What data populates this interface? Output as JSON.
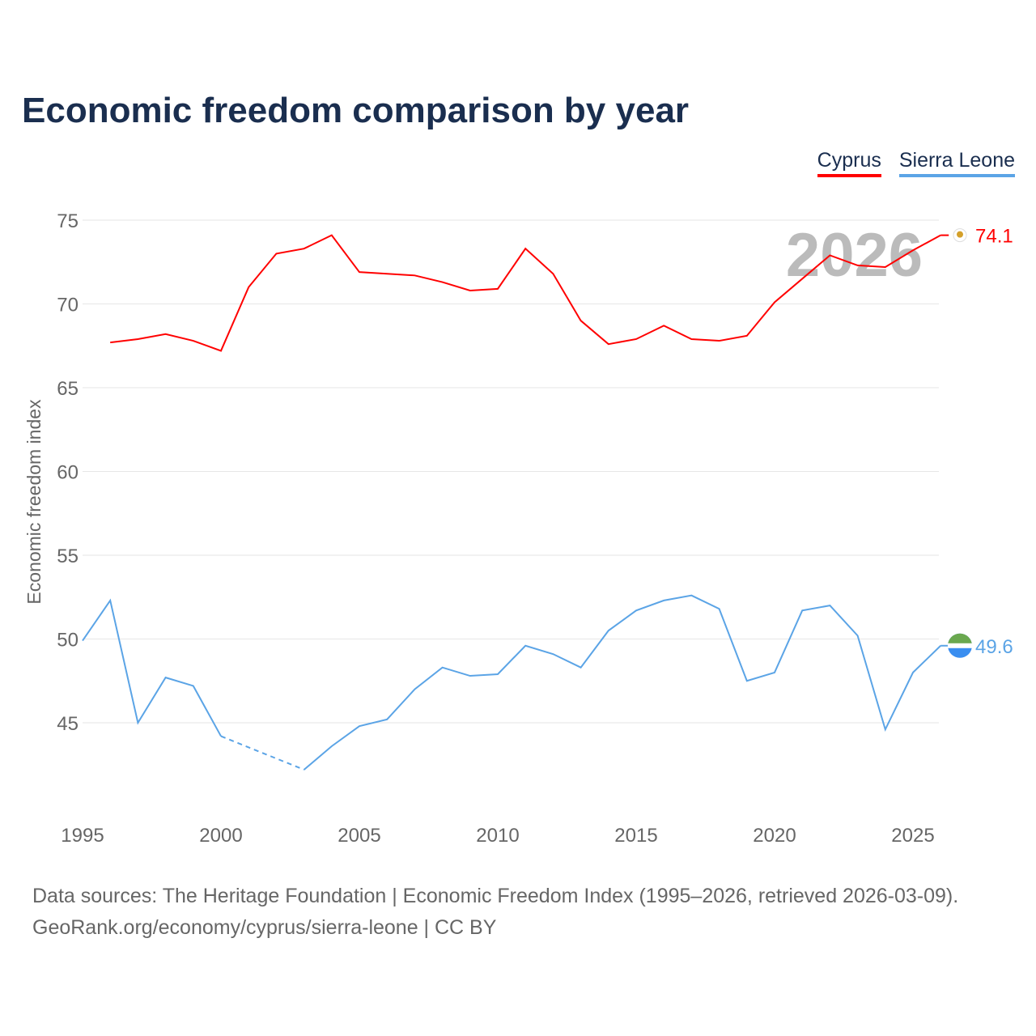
{
  "chart_data": {
    "type": "line",
    "title": "Economic freedom comparison by year",
    "ylabel": "Economic freedom index",
    "xlabel": "",
    "xlim": [
      1995,
      2026
    ],
    "ylim": [
      40,
      76
    ],
    "yticks": [
      45,
      50,
      55,
      60,
      65,
      70,
      75
    ],
    "xticks": [
      1995,
      2000,
      2005,
      2010,
      2015,
      2020,
      2025
    ],
    "grid": true,
    "legend_position": "top-right",
    "watermark_year": "2026",
    "series": [
      {
        "name": "Cyprus",
        "color": "#ff0000",
        "end_label": "74.1",
        "x": [
          1996,
          1997,
          1998,
          1999,
          2000,
          2001,
          2002,
          2003,
          2004,
          2005,
          2006,
          2007,
          2008,
          2009,
          2010,
          2011,
          2012,
          2013,
          2014,
          2015,
          2016,
          2017,
          2018,
          2019,
          2020,
          2021,
          2022,
          2023,
          2024,
          2025,
          2026
        ],
        "y": [
          67.7,
          67.9,
          68.2,
          67.8,
          67.2,
          71.0,
          73.0,
          73.3,
          74.1,
          71.9,
          71.8,
          71.7,
          71.3,
          70.8,
          70.9,
          73.3,
          71.8,
          69.0,
          67.6,
          67.9,
          68.7,
          67.9,
          67.8,
          68.1,
          70.1,
          71.5,
          72.9,
          72.3,
          72.2,
          73.2,
          74.1
        ]
      },
      {
        "name": "Sierra Leone",
        "color": "#5ba4e6",
        "end_label": "49.6",
        "x": [
          1995,
          1996,
          1997,
          1998,
          1999,
          2000,
          2003,
          2004,
          2005,
          2006,
          2007,
          2008,
          2009,
          2010,
          2011,
          2012,
          2013,
          2014,
          2015,
          2016,
          2017,
          2018,
          2019,
          2020,
          2021,
          2022,
          2023,
          2024,
          2025,
          2026
        ],
        "y": [
          49.9,
          52.3,
          45.0,
          47.7,
          47.2,
          44.2,
          42.2,
          43.6,
          44.8,
          45.2,
          47.0,
          48.3,
          47.8,
          47.9,
          49.6,
          49.1,
          48.3,
          50.5,
          51.7,
          52.3,
          52.6,
          51.8,
          47.5,
          48.0,
          51.7,
          52.0,
          50.2,
          44.6,
          48.0,
          49.6
        ],
        "gaps_dashed": [
          [
            2000,
            2003
          ]
        ]
      }
    ]
  },
  "footer": {
    "line1": "Data sources: The Heritage Foundation | Economic Freedom Index (1995–2026, retrieved 2026-03-09).",
    "line2": "GeoRank.org/economy/cyprus/sierra-leone | CC BY"
  }
}
